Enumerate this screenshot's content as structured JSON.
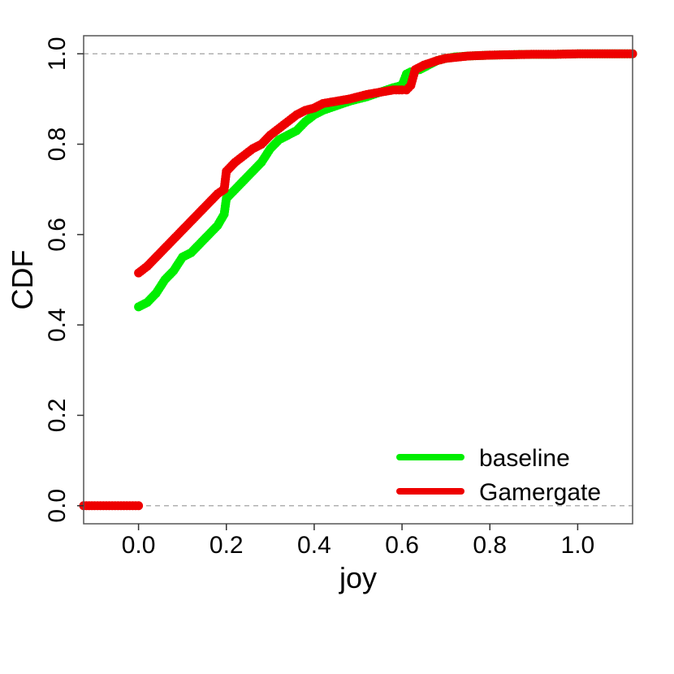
{
  "chart_data": {
    "type": "scatter",
    "title": "",
    "xlabel": "joy",
    "ylabel": "CDF",
    "xlim": [
      -0.125,
      1.125
    ],
    "ylim": [
      -0.04,
      1.04
    ],
    "x_ticks": [
      0.0,
      0.2,
      0.4,
      0.6,
      0.8,
      1.0
    ],
    "y_ticks": [
      0.0,
      0.2,
      0.4,
      0.6,
      0.8,
      1.0
    ],
    "x_tick_labels": [
      "0.0",
      "0.2",
      "0.4",
      "0.6",
      "0.8",
      "1.0"
    ],
    "y_tick_labels": [
      "0.0",
      "0.2",
      "0.4",
      "0.6",
      "0.8",
      "1.0"
    ],
    "reference_lines_y": [
      0.0,
      1.0
    ],
    "legend_position": "bottom-right",
    "series": [
      {
        "name": "baseline",
        "color": "#00ee00",
        "x": [
          0.0,
          0.02,
          0.04,
          0.06,
          0.08,
          0.1,
          0.12,
          0.14,
          0.16,
          0.18,
          0.195,
          0.2,
          0.22,
          0.24,
          0.26,
          0.28,
          0.3,
          0.32,
          0.34,
          0.36,
          0.38,
          0.4,
          0.42,
          0.45,
          0.48,
          0.5,
          0.52,
          0.55,
          0.58,
          0.6,
          0.61,
          0.62,
          0.64,
          0.66,
          0.68,
          0.7,
          0.72,
          0.75,
          0.8,
          0.85,
          0.9,
          0.95,
          1.0,
          1.125
        ],
        "y": [
          0.44,
          0.45,
          0.47,
          0.5,
          0.52,
          0.55,
          0.56,
          0.58,
          0.6,
          0.62,
          0.645,
          0.68,
          0.7,
          0.72,
          0.74,
          0.76,
          0.79,
          0.81,
          0.82,
          0.83,
          0.85,
          0.865,
          0.875,
          0.885,
          0.895,
          0.9,
          0.905,
          0.915,
          0.925,
          0.93,
          0.955,
          0.96,
          0.965,
          0.975,
          0.985,
          0.99,
          0.993,
          0.995,
          0.997,
          0.998,
          0.999,
          0.999,
          1.0,
          1.0
        ]
      },
      {
        "name": "Gamergate",
        "color": "#ee0000",
        "x": [
          -0.125,
          -0.1,
          -0.08,
          -0.06,
          -0.04,
          -0.02,
          0.0,
          0.0,
          0.02,
          0.04,
          0.06,
          0.08,
          0.1,
          0.12,
          0.14,
          0.16,
          0.18,
          0.195,
          0.2,
          0.22,
          0.24,
          0.26,
          0.28,
          0.3,
          0.32,
          0.34,
          0.36,
          0.38,
          0.4,
          0.42,
          0.45,
          0.48,
          0.5,
          0.52,
          0.55,
          0.58,
          0.6,
          0.61,
          0.62,
          0.63,
          0.65,
          0.68,
          0.7,
          0.75,
          0.8,
          0.85,
          0.9,
          0.95,
          1.0,
          1.05,
          1.1,
          1.125
        ],
        "y": [
          0.0,
          0.0,
          0.0,
          0.0,
          0.0,
          0.0,
          0.0,
          0.515,
          0.53,
          0.55,
          0.57,
          0.59,
          0.61,
          0.63,
          0.65,
          0.67,
          0.69,
          0.7,
          0.74,
          0.76,
          0.775,
          0.79,
          0.8,
          0.82,
          0.835,
          0.85,
          0.865,
          0.875,
          0.88,
          0.89,
          0.895,
          0.9,
          0.905,
          0.91,
          0.915,
          0.92,
          0.92,
          0.92,
          0.93,
          0.965,
          0.975,
          0.985,
          0.99,
          0.995,
          0.997,
          0.998,
          0.999,
          0.999,
          1.0,
          1.0,
          1.0,
          1.0
        ]
      }
    ]
  }
}
